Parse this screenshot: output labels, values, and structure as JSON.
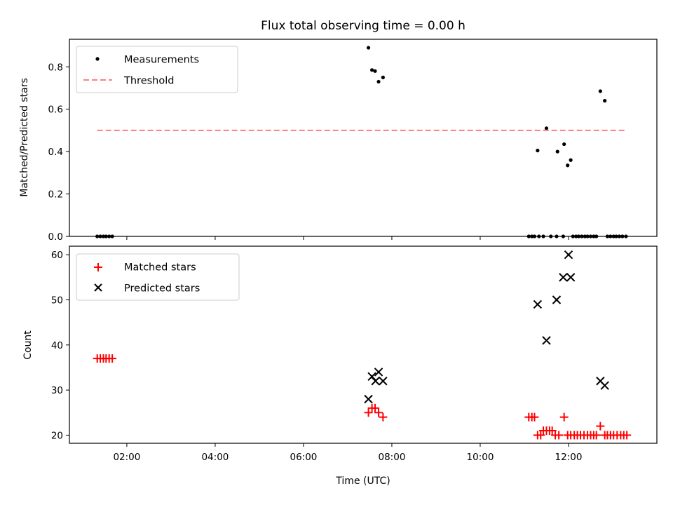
{
  "figure": {
    "title": "Flux total observing time = 0.00 h"
  },
  "chart_data": [
    {
      "type": "scatter",
      "name": "ratio-panel",
      "ylabel": "Matched/Predicted stars",
      "ylim": [
        0,
        0.93
      ],
      "xlim": [
        0.7,
        14.0
      ],
      "yticks": [
        0.0,
        0.2,
        0.4,
        0.6,
        0.8
      ],
      "ytick_labels": [
        "0.0",
        "0.2",
        "0.4",
        "0.6",
        "0.8"
      ],
      "legend_position": "upper-left",
      "series": [
        {
          "name": "Measurements",
          "marker": "dot",
          "color": "#000000",
          "x": [
            1.33,
            1.4,
            1.47,
            1.53,
            1.6,
            1.67,
            7.47,
            7.55,
            7.62,
            7.7,
            7.8,
            11.1,
            11.17,
            11.23,
            11.3,
            11.33,
            11.43,
            11.5,
            11.6,
            11.73,
            11.75,
            11.88,
            11.9,
            11.98,
            12.05,
            12.1,
            12.17,
            12.23,
            12.3,
            12.37,
            12.43,
            12.5,
            12.57,
            12.63,
            12.72,
            12.82,
            12.88,
            12.95,
            13.02,
            13.08,
            13.15,
            13.22,
            13.3
          ],
          "y": [
            0,
            0,
            0,
            0,
            0,
            0,
            0.89,
            0.785,
            0.78,
            0.73,
            0.75,
            0,
            0,
            0,
            0.405,
            0,
            0,
            0.51,
            0,
            0,
            0.4,
            0,
            0.435,
            0.335,
            0.36,
            0,
            0,
            0,
            0,
            0,
            0,
            0,
            0,
            0,
            0.685,
            0.64,
            0,
            0,
            0,
            0,
            0,
            0,
            0
          ]
        },
        {
          "name": "Threshold",
          "marker": "dashed-line",
          "color": "#ff7f7f",
          "x": [
            1.33,
            13.3
          ],
          "y": [
            0.5,
            0.5
          ]
        }
      ]
    },
    {
      "type": "scatter",
      "name": "count-panel",
      "ylabel": "Count",
      "xlabel": "Time (UTC)",
      "ylim": [
        18.2,
        61.9
      ],
      "xlim": [
        0.7,
        14.0
      ],
      "yticks": [
        20,
        30,
        40,
        50,
        60
      ],
      "ytick_labels": [
        "20",
        "30",
        "40",
        "50",
        "60"
      ],
      "xticks": [
        2,
        4,
        6,
        8,
        10,
        12
      ],
      "xtick_labels": [
        "02:00",
        "04:00",
        "06:00",
        "08:00",
        "10:00",
        "12:00"
      ],
      "legend_position": "upper-left",
      "series": [
        {
          "name": "Matched stars",
          "marker": "plus",
          "color": "#ff0000",
          "x": [
            1.33,
            1.4,
            1.47,
            1.53,
            1.6,
            1.67,
            7.47,
            7.55,
            7.62,
            7.7,
            7.8,
            11.1,
            11.17,
            11.23,
            11.3,
            11.37,
            11.43,
            11.5,
            11.57,
            11.63,
            11.7,
            11.78,
            11.9,
            11.98,
            12.05,
            12.13,
            12.2,
            12.27,
            12.35,
            12.43,
            12.5,
            12.57,
            12.63,
            12.72,
            12.82,
            12.88,
            12.95,
            13.02,
            13.1,
            13.18,
            13.25,
            13.32
          ],
          "y": [
            37,
            37,
            37,
            37,
            37,
            37,
            25,
            26,
            26,
            25,
            24,
            24,
            24,
            24,
            20,
            20,
            21,
            21,
            21,
            21,
            20,
            20,
            24,
            20,
            20,
            20,
            20,
            20,
            20,
            20,
            20,
            20,
            20,
            22,
            20,
            20,
            20,
            20,
            20,
            20,
            20,
            20
          ]
        },
        {
          "name": "Predicted stars",
          "marker": "x",
          "color": "#000000",
          "x": [
            7.47,
            7.55,
            7.63,
            7.7,
            7.8,
            11.3,
            11.5,
            11.73,
            11.88,
            12.0,
            12.05,
            12.72,
            12.82
          ],
          "y": [
            28,
            33,
            32,
            34,
            32,
            49,
            41,
            50,
            55,
            60,
            55,
            32,
            31
          ]
        }
      ]
    }
  ]
}
